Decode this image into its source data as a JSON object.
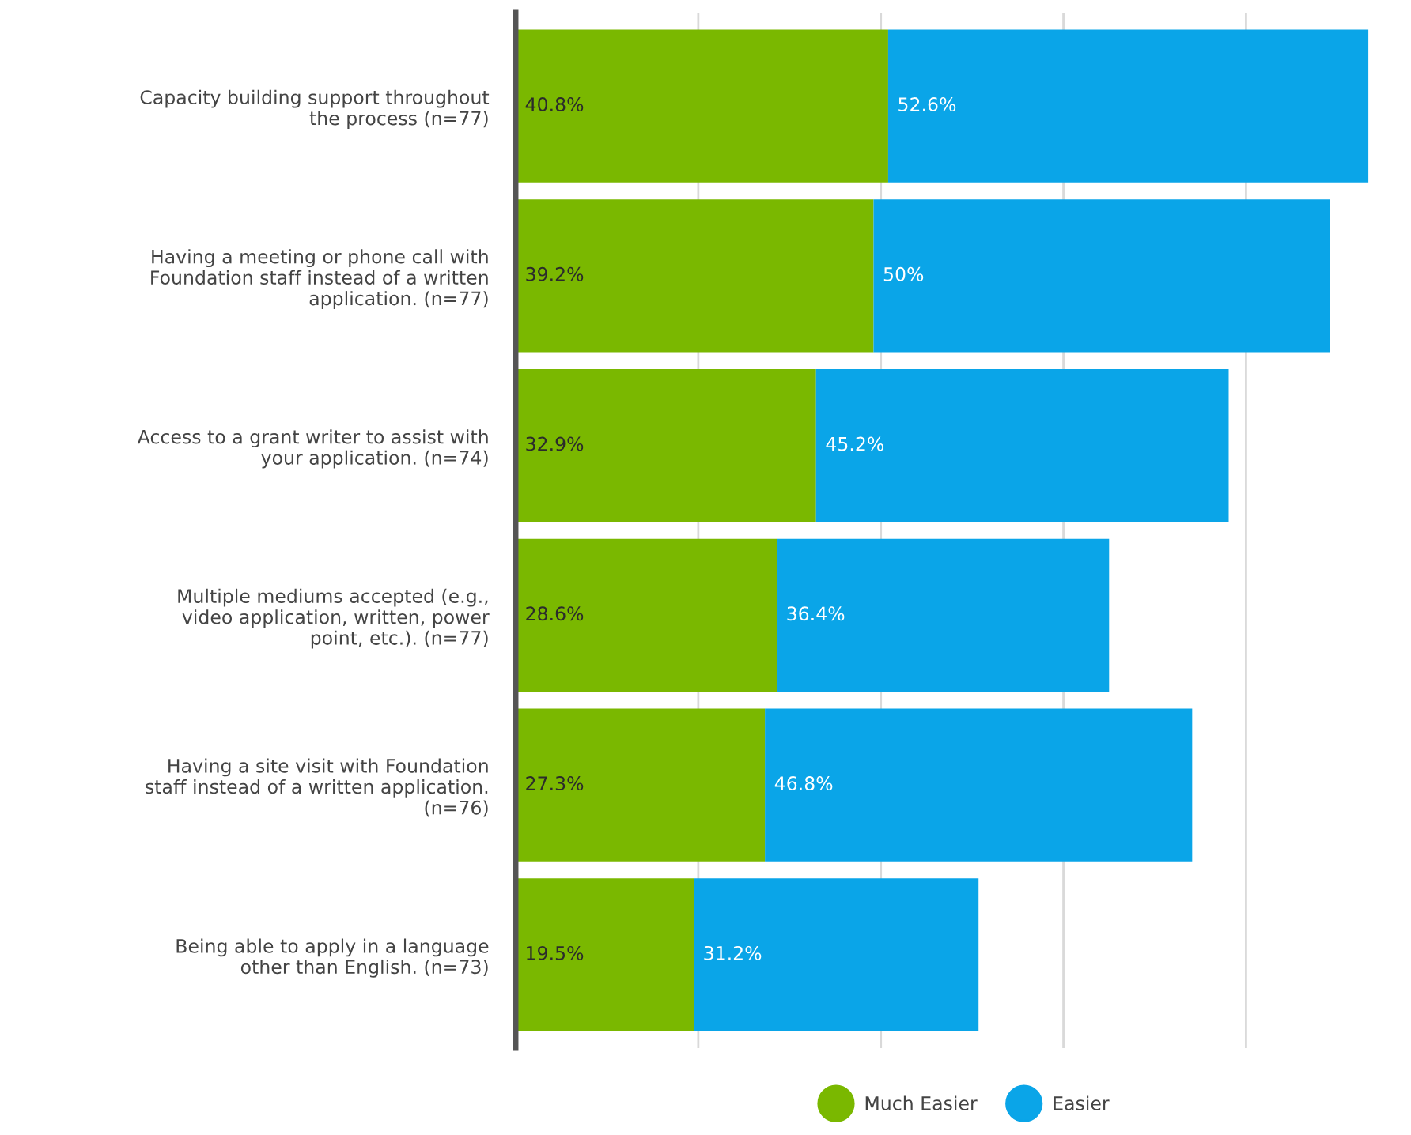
{
  "chart_data": {
    "type": "bar",
    "orientation": "horizontal",
    "stacked": true,
    "categories": [
      "Capacity building support throughout\nthe process (n=77)",
      "Having a meeting or phone call with\nFoundation staff instead of a written\napplication. (n=77)",
      "Access to a grant writer to assist with\nyour application. (n=74)",
      "Multiple mediums accepted (e.g.,\nvideo application, written, power\npoint, etc.). (n=77)",
      "Having a site visit with Foundation\nstaff instead of a written application.\n(n=76)",
      "Being able to apply in a language\nother than English. (n=73)"
    ],
    "series": [
      {
        "name": "Much Easier",
        "color": "#7ab800",
        "values": [
          40.8,
          39.2,
          32.9,
          28.6,
          27.3,
          19.5
        ],
        "value_labels": [
          "40.8%",
          "39.2%",
          "32.9%",
          "28.6%",
          "27.3%",
          "19.5%"
        ]
      },
      {
        "name": "Easier",
        "color": "#0aa5e8",
        "values": [
          52.6,
          50,
          45.2,
          36.4,
          46.8,
          31.2
        ],
        "value_labels": [
          "52.6%",
          "50%",
          "45.2%",
          "36.4%",
          "46.8%",
          "31.2%"
        ]
      }
    ],
    "tick_labels": "y",
    "grid": "x",
    "legend": "bottom"
  }
}
